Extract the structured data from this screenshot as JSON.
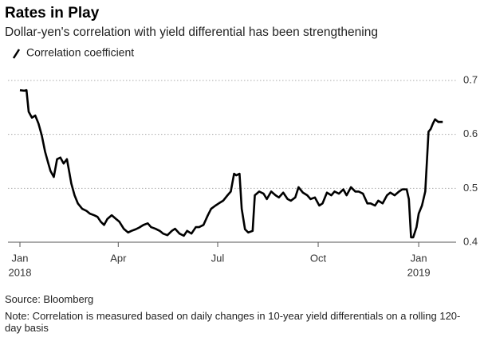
{
  "chart_data": {
    "type": "line",
    "title": "Rates in Play",
    "subtitle": "Dollar-yen's correlation with yield differential has been strengthening",
    "source": "Source: Bloomberg",
    "note": "Note: Correlation is measured based on daily changes in 10-year yield differentials on a rolling 120-day basis",
    "x": [
      0,
      4,
      6,
      8,
      11,
      14,
      17,
      20,
      23,
      26,
      28,
      31,
      34,
      37,
      40,
      43,
      45,
      47,
      50,
      53,
      57,
      61,
      64,
      68,
      71,
      74,
      77,
      80,
      84,
      88,
      91,
      95,
      99,
      102,
      106,
      109,
      113,
      117,
      120,
      124,
      128,
      131,
      135,
      139,
      142,
      146,
      150,
      153,
      157,
      161,
      164,
      168,
      172,
      175,
      179,
      182,
      186,
      190,
      193,
      196,
      198,
      201,
      203,
      206,
      209,
      213,
      215,
      219,
      223,
      226,
      230,
      234,
      237,
      241,
      245,
      248,
      252,
      255,
      259,
      263,
      266,
      270,
      274,
      277,
      281,
      285,
      288,
      292,
      296,
      299,
      303,
      307,
      310,
      314,
      318,
      321,
      325,
      328,
      332,
      336,
      339,
      343,
      347,
      350,
      354,
      356,
      358,
      360,
      363,
      365,
      368,
      371,
      374,
      376,
      378,
      380,
      383,
      387
    ],
    "series": [
      {
        "name": "Correlation coefficient",
        "color": "#000000",
        "values": [
          0.682,
          0.681,
          0.682,
          0.642,
          0.631,
          0.635,
          0.62,
          0.598,
          0.568,
          0.546,
          0.532,
          0.521,
          0.554,
          0.557,
          0.546,
          0.554,
          0.532,
          0.509,
          0.487,
          0.472,
          0.462,
          0.458,
          0.453,
          0.45,
          0.447,
          0.438,
          0.432,
          0.443,
          0.45,
          0.443,
          0.438,
          0.425,
          0.418,
          0.421,
          0.424,
          0.427,
          0.432,
          0.435,
          0.428,
          0.425,
          0.421,
          0.416,
          0.413,
          0.421,
          0.425,
          0.416,
          0.412,
          0.421,
          0.416,
          0.428,
          0.428,
          0.432,
          0.45,
          0.462,
          0.468,
          0.472,
          0.477,
          0.487,
          0.494,
          0.527,
          0.524,
          0.527,
          0.462,
          0.424,
          0.418,
          0.421,
          0.487,
          0.494,
          0.49,
          0.48,
          0.494,
          0.487,
          0.483,
          0.492,
          0.48,
          0.477,
          0.483,
          0.502,
          0.492,
          0.487,
          0.48,
          0.483,
          0.468,
          0.472,
          0.492,
          0.487,
          0.494,
          0.49,
          0.498,
          0.487,
          0.502,
          0.494,
          0.494,
          0.49,
          0.472,
          0.472,
          0.468,
          0.477,
          0.472,
          0.487,
          0.492,
          0.487,
          0.494,
          0.498,
          0.498,
          0.48,
          0.409,
          0.409,
          0.428,
          0.453,
          0.468,
          0.494,
          0.605,
          0.61,
          0.62,
          0.628,
          0.623,
          0.623
        ]
      }
    ],
    "xlim": [
      -10,
      398
    ],
    "xticks": [
      {
        "value": 0,
        "label": "Jan",
        "year": "2018"
      },
      {
        "value": 90,
        "label": "Apr"
      },
      {
        "value": 181,
        "label": "Jul"
      },
      {
        "value": 273,
        "label": "Oct"
      },
      {
        "value": 365,
        "label": "Jan",
        "year": "2019"
      }
    ],
    "ylim": [
      0.4,
      0.7
    ],
    "yticks": [
      0.4,
      0.5,
      0.6,
      0.7
    ],
    "grid": true
  }
}
